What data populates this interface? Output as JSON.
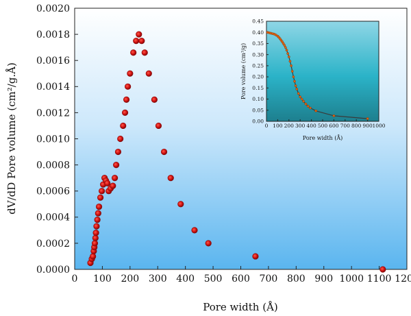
{
  "chart_data": [
    {
      "type": "scatter",
      "xlabel": "Pore width (Å)",
      "ylabel": "dV/dD Pore volume (cm²/g.Å)",
      "xlim": [
        0,
        1200
      ],
      "ylim": [
        0,
        0.002
      ],
      "x_ticks": [
        "0",
        "100",
        "200",
        "300",
        "400",
        "500",
        "600",
        "700",
        "800",
        "900",
        "1000",
        "1100",
        "1200"
      ],
      "y_ticks": [
        "0.0000",
        "0.0002",
        "0.0004",
        "0.0006",
        "0.0008",
        "0.0010",
        "0.0012",
        "0.0014",
        "0.0016",
        "0.0018",
        "0.0020"
      ],
      "grid": false,
      "background": "vertical gradient white to light blue",
      "marker_color": "#d01010",
      "points": [
        [
          57,
          5e-05
        ],
        [
          62,
          8e-05
        ],
        [
          66,
          0.0001
        ],
        [
          69,
          0.00014
        ],
        [
          71,
          0.00017
        ],
        [
          73,
          0.0002
        ],
        [
          75,
          0.00024
        ],
        [
          77,
          0.00028
        ],
        [
          79,
          0.00033
        ],
        [
          82,
          0.00038
        ],
        [
          85,
          0.00043
        ],
        [
          88,
          0.00048
        ],
        [
          93,
          0.00055
        ],
        [
          98,
          0.0006
        ],
        [
          103,
          0.00065
        ],
        [
          108,
          0.0007
        ],
        [
          113,
          0.00068
        ],
        [
          118,
          0.00066
        ],
        [
          123,
          0.0006
        ],
        [
          130,
          0.00062
        ],
        [
          138,
          0.00064
        ],
        [
          145,
          0.0007
        ],
        [
          150,
          0.0008
        ],
        [
          157,
          0.0009
        ],
        [
          165,
          0.001
        ],
        [
          175,
          0.0011
        ],
        [
          182,
          0.0012
        ],
        [
          187,
          0.0013
        ],
        [
          192,
          0.0014
        ],
        [
          200,
          0.0015
        ],
        [
          212,
          0.00166
        ],
        [
          222,
          0.00175
        ],
        [
          232,
          0.0018
        ],
        [
          242,
          0.00175
        ],
        [
          253,
          0.00166
        ],
        [
          268,
          0.0015
        ],
        [
          288,
          0.0013
        ],
        [
          303,
          0.0011
        ],
        [
          323,
          0.0009
        ],
        [
          347,
          0.0007
        ],
        [
          383,
          0.0005
        ],
        [
          433,
          0.0003
        ],
        [
          483,
          0.0002
        ],
        [
          653,
          0.0001
        ],
        [
          1113,
          0.0
        ]
      ]
    },
    {
      "type": "scatter",
      "xlabel": "Pore width (Å)",
      "ylabel": "Pore volume (cm³/g)",
      "xlim": [
        0,
        1000
      ],
      "ylim": [
        0,
        0.45
      ],
      "x_ticks": [
        "0",
        "100",
        "200",
        "300",
        "400",
        "500",
        "600",
        "700",
        "800",
        "900",
        "1000"
      ],
      "y_ticks": [
        "0.00",
        "0.05",
        "0.10",
        "0.15",
        "0.20",
        "0.25",
        "0.30",
        "0.35",
        "0.40",
        "0.45"
      ],
      "grid": false,
      "background": "teal gradient",
      "line_color": "#3a3a3a",
      "marker_color": "#e06010",
      "points": [
        [
          10,
          0.4
        ],
        [
          25,
          0.398
        ],
        [
          40,
          0.396
        ],
        [
          55,
          0.394
        ],
        [
          70,
          0.392
        ],
        [
          85,
          0.388
        ],
        [
          100,
          0.383
        ],
        [
          110,
          0.378
        ],
        [
          120,
          0.372
        ],
        [
          130,
          0.365
        ],
        [
          140,
          0.358
        ],
        [
          150,
          0.35
        ],
        [
          160,
          0.342
        ],
        [
          170,
          0.332
        ],
        [
          180,
          0.32
        ],
        [
          190,
          0.305
        ],
        [
          200,
          0.29
        ],
        [
          210,
          0.27
        ],
        [
          220,
          0.25
        ],
        [
          230,
          0.225
        ],
        [
          240,
          0.2
        ],
        [
          250,
          0.18
        ],
        [
          260,
          0.16
        ],
        [
          270,
          0.145
        ],
        [
          285,
          0.125
        ],
        [
          300,
          0.11
        ],
        [
          315,
          0.1
        ],
        [
          330,
          0.09
        ],
        [
          350,
          0.078
        ],
        [
          370,
          0.068
        ],
        [
          390,
          0.06
        ],
        [
          440,
          0.047
        ],
        [
          600,
          0.025
        ],
        [
          900,
          0.012
        ]
      ]
    }
  ]
}
